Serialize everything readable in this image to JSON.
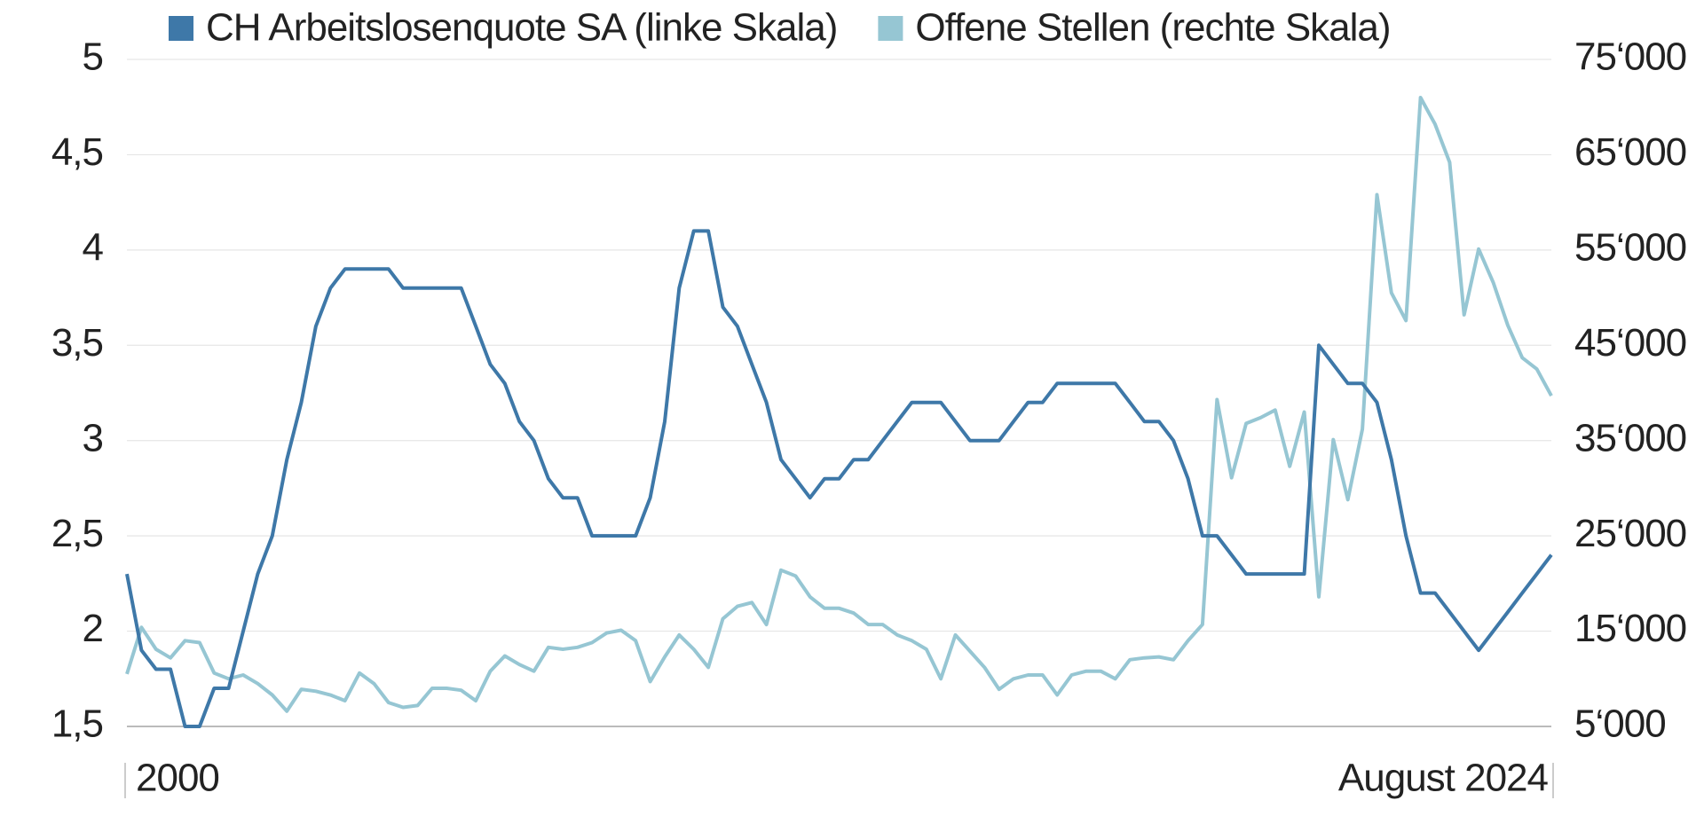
{
  "chart_data": {
    "type": "line",
    "categories": [
      "2000",
      null,
      null,
      null,
      null,
      null,
      null,
      null,
      null,
      null,
      null,
      null,
      null,
      null,
      null,
      null,
      null,
      null,
      null,
      null,
      null,
      null,
      null,
      null,
      null,
      null,
      null,
      null,
      null,
      null,
      null,
      null,
      null,
      null,
      null,
      null,
      null,
      null,
      null,
      null,
      null,
      null,
      null,
      null,
      null,
      null,
      null,
      null,
      null,
      null,
      null,
      null,
      null,
      null,
      null,
      null,
      null,
      null,
      null,
      null,
      null,
      null,
      null,
      null,
      null,
      null,
      null,
      null,
      null,
      null,
      null,
      null,
      null,
      null,
      null,
      null,
      null,
      null,
      null,
      null,
      null,
      null,
      null,
      null,
      null,
      null,
      null,
      null,
      null,
      null,
      null,
      null,
      null,
      null,
      null,
      null,
      null,
      null,
      "August 2024"
    ],
    "series": [
      {
        "name": "CH Arbeitslosenquote SA (linke Skala)",
        "color": "#3e78a8",
        "axis": "y",
        "values": [
          2.3,
          1.9,
          1.8,
          1.8,
          1.5,
          1.5,
          1.7,
          1.7,
          2.0,
          2.3,
          2.5,
          2.9,
          3.2,
          3.6,
          3.8,
          3.9,
          3.9,
          3.9,
          3.9,
          3.8,
          3.8,
          3.8,
          3.8,
          3.8,
          3.6,
          3.4,
          3.3,
          3.1,
          3.0,
          2.8,
          2.7,
          2.7,
          2.5,
          2.5,
          2.5,
          2.5,
          2.7,
          3.1,
          3.8,
          4.1,
          4.1,
          3.7,
          3.6,
          3.4,
          3.2,
          2.9,
          2.8,
          2.7,
          2.8,
          2.8,
          2.9,
          2.9,
          3.0,
          3.1,
          3.2,
          3.2,
          3.2,
          3.1,
          3.0,
          3.0,
          3.0,
          3.1,
          3.2,
          3.2,
          3.3,
          3.3,
          3.3,
          3.3,
          3.3,
          3.2,
          3.1,
          3.1,
          3.0,
          2.8,
          2.5,
          2.5,
          2.4,
          2.3,
          2.3,
          2.3,
          2.3,
          2.3,
          3.5,
          3.4,
          3.3,
          3.3,
          3.2,
          2.9,
          2.5,
          2.2,
          2.2,
          2.1,
          2.0,
          1.9,
          2.0,
          2.1,
          2.2,
          2.3,
          2.4
        ]
      },
      {
        "name": "Offene Stellen (rechte Skala)",
        "color": "#96c6d3",
        "axis": "y2",
        "values": [
          10500,
          15400,
          13100,
          12200,
          14000,
          13800,
          10600,
          10000,
          10400,
          9500,
          8300,
          6600,
          8900,
          8700,
          8300,
          7700,
          10600,
          9500,
          7500,
          7000,
          7200,
          9000,
          9000,
          8800,
          7700,
          10800,
          12400,
          11500,
          10800,
          13300,
          13100,
          13300,
          13800,
          14800,
          15100,
          14000,
          9700,
          12300,
          14600,
          13100,
          11200,
          16300,
          17600,
          18000,
          15700,
          21400,
          20800,
          18600,
          17400,
          17400,
          16900,
          15700,
          15700,
          14600,
          14000,
          13100,
          10000,
          14600,
          12900,
          11200,
          8900,
          10000,
          10400,
          10400,
          8300,
          10400,
          10800,
          10800,
          10000,
          12000,
          12200,
          12300,
          12000,
          14000,
          15700,
          39300,
          31100,
          36800,
          37400,
          38200,
          32300,
          38000,
          18600,
          35100,
          28800,
          36200,
          60800,
          50500,
          47600,
          71000,
          68200,
          64200,
          48200,
          55100,
          51600,
          47100,
          43700,
          42500,
          39700
        ]
      }
    ],
    "ylim": [
      1.5,
      5
    ],
    "yticks": [
      {
        "value": 1.5,
        "label": "1,5"
      },
      2,
      {
        "value": 2.5,
        "label": "2,5"
      },
      3,
      {
        "value": 3.5,
        "label": "3,5"
      },
      4,
      {
        "value": 4.5,
        "label": "4,5"
      },
      5
    ],
    "y2lim": [
      5000,
      75000
    ],
    "y2ticks": [
      {
        "value": 5000,
        "label": "5‘000"
      },
      {
        "value": 15000,
        "label": "15‘000"
      },
      {
        "value": 25000,
        "label": "25‘000"
      },
      {
        "value": 35000,
        "label": "35‘000"
      },
      {
        "value": 45000,
        "label": "45‘000"
      },
      {
        "value": 55000,
        "label": "55‘000"
      },
      {
        "value": 65000,
        "label": "65‘000"
      },
      {
        "value": 75000,
        "label": "75‘000"
      }
    ],
    "grid": true
  }
}
